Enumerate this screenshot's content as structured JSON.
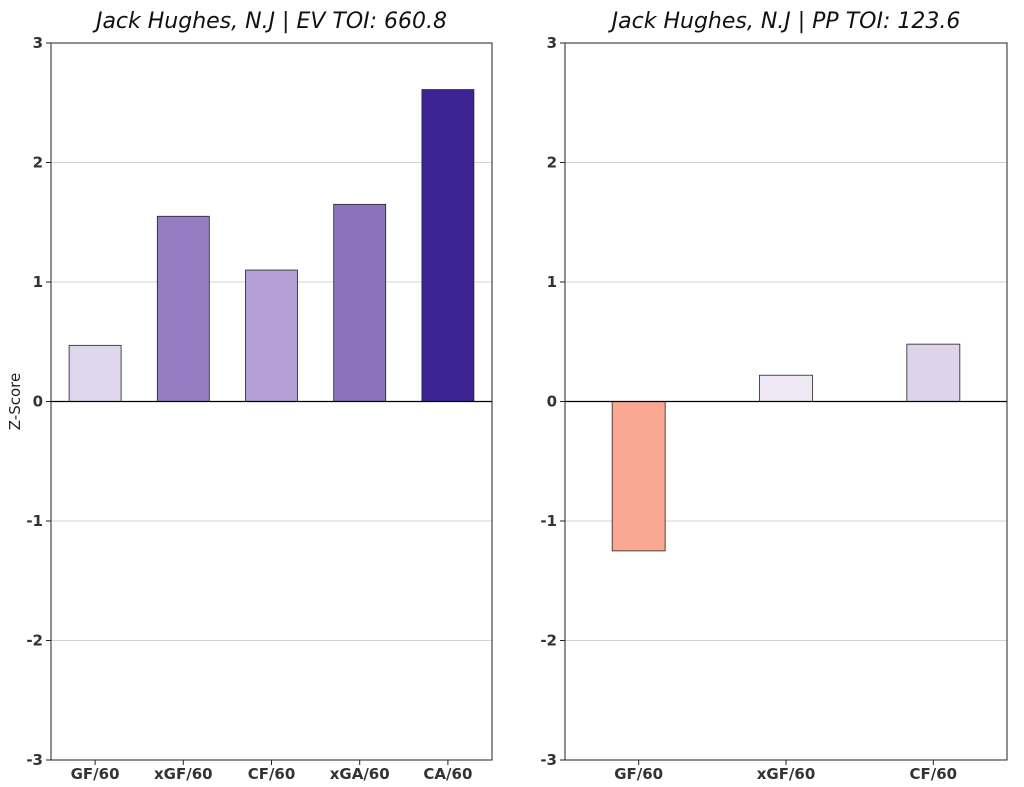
{
  "chart_data": [
    {
      "type": "bar",
      "title": "Jack Hughes, N.J  |  EV TOI: 660.8",
      "ylabel": "Z-Score",
      "xlabel": "",
      "ylim": [
        -3,
        3
      ],
      "yticks": [
        "-3",
        "-2",
        "-1",
        "0",
        "1",
        "2",
        "3"
      ],
      "grid": true,
      "categories": [
        "GF/60",
        "xGF/60",
        "CF/60",
        "xGA/60",
        "CA/60"
      ],
      "values": [
        0.47,
        1.55,
        1.1,
        1.65,
        2.61
      ],
      "colors": [
        "#ddd6ec",
        "#947dc2",
        "#b4a0d6",
        "#8b72bd",
        "#3e2395"
      ]
    },
    {
      "type": "bar",
      "title": "Jack Hughes, N.J  |  PP TOI: 123.6",
      "ylabel": "",
      "xlabel": "",
      "ylim": [
        -3,
        3
      ],
      "yticks": [
        "-3",
        "-2",
        "-1",
        "0",
        "1",
        "2",
        "3"
      ],
      "grid": true,
      "categories": [
        "GF/60",
        "xGF/60",
        "CF/60"
      ],
      "values": [
        -1.25,
        0.22,
        0.48
      ],
      "colors": [
        "#fba892",
        "#eee9f5",
        "#ddd4ea"
      ]
    }
  ]
}
